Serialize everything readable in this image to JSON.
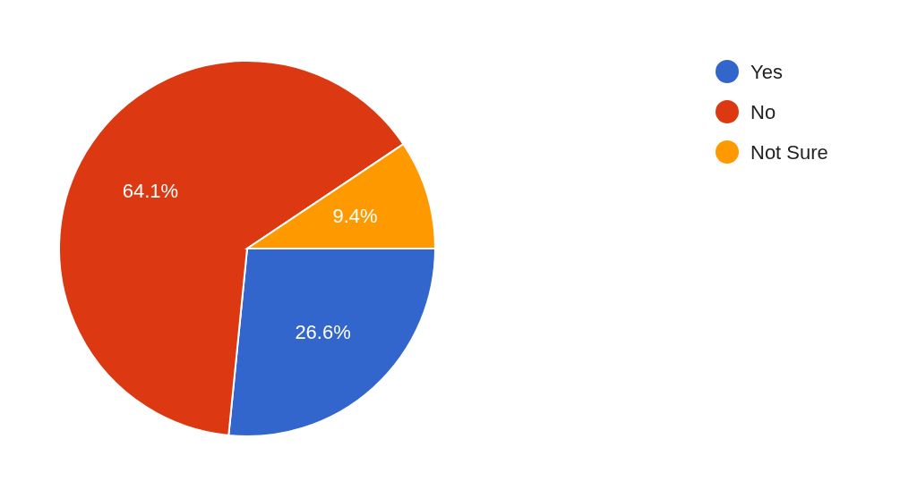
{
  "chart_data": {
    "type": "pie",
    "categories": [
      "Yes",
      "No",
      "Not Sure"
    ],
    "values": [
      26.6,
      64.1,
      9.4
    ],
    "colors": [
      "#3366cc",
      "#dc3912",
      "#ff9900"
    ],
    "value_labels": [
      "26.6%",
      "64.1%",
      "9.4%"
    ],
    "legend": "top right"
  }
}
